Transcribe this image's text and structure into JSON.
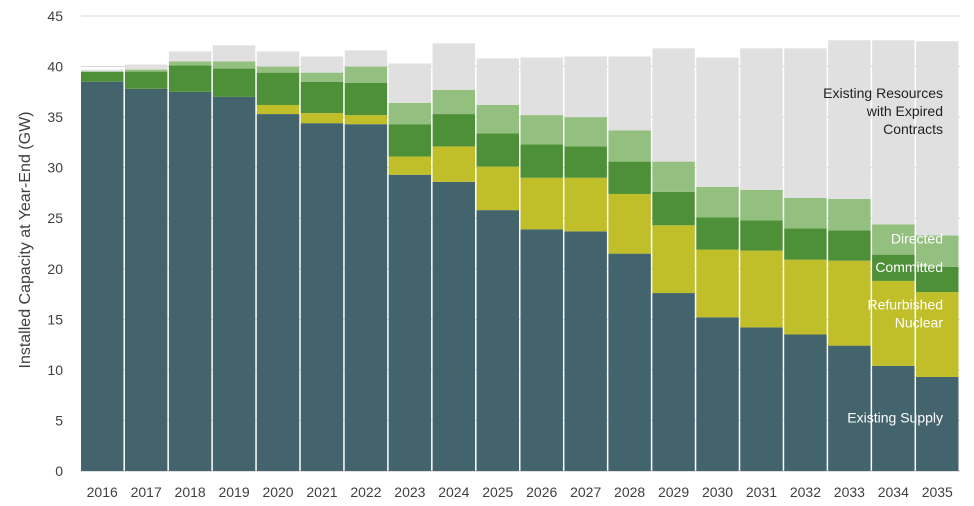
{
  "chart_data": {
    "type": "bar",
    "stacked": true,
    "title": "",
    "xlabel": "",
    "ylabel": "Installed Capacity at Year-End (GW)",
    "ylim": [
      0,
      45
    ],
    "yticks": [
      0,
      5,
      10,
      15,
      20,
      25,
      30,
      35,
      40,
      45
    ],
    "grid": true,
    "legend": "none",
    "categories": [
      "2016",
      "2017",
      "2018",
      "2019",
      "2020",
      "2021",
      "2022",
      "2023",
      "2024",
      "2025",
      "2026",
      "2027",
      "2028",
      "2029",
      "2030",
      "2031",
      "2032",
      "2033",
      "2034",
      "2035"
    ],
    "series": [
      {
        "key": "existing",
        "color": "#43646c",
        "values": [
          38.5,
          37.8,
          37.5,
          37.0,
          35.3,
          34.4,
          34.3,
          29.3,
          28.6,
          25.8,
          23.9,
          23.7,
          21.5,
          17.6,
          15.2,
          14.2,
          13.5,
          12.4,
          10.4,
          9.3
        ]
      },
      {
        "key": "refurbished",
        "color": "#c0bf2a",
        "values": [
          0,
          0,
          0,
          0,
          0.9,
          1.0,
          0.9,
          1.8,
          3.5,
          4.3,
          5.1,
          5.3,
          5.9,
          6.7,
          6.7,
          7.6,
          7.4,
          8.4,
          8.4,
          8.4
        ]
      },
      {
        "key": "committed",
        "color": "#4e9038",
        "values": [
          1.0,
          1.7,
          2.6,
          2.8,
          3.2,
          3.1,
          3.2,
          3.2,
          3.2,
          3.3,
          3.3,
          3.1,
          3.2,
          3.3,
          3.2,
          3.0,
          3.1,
          3.0,
          2.6,
          2.5
        ]
      },
      {
        "key": "directed",
        "color": "#93c07e",
        "values": [
          0,
          0.2,
          0.4,
          0.7,
          0.6,
          0.9,
          1.6,
          2.1,
          2.4,
          2.8,
          2.9,
          2.9,
          3.1,
          3.0,
          3.0,
          3.0,
          3.0,
          3.1,
          3.0,
          3.1
        ]
      },
      {
        "key": "expired",
        "color": "#e0e0e0",
        "values": [
          0.2,
          0.5,
          1.0,
          1.6,
          1.5,
          1.6,
          1.6,
          3.9,
          4.6,
          4.6,
          5.7,
          6.0,
          7.3,
          11.2,
          12.8,
          14.0,
          14.8,
          15.7,
          18.2,
          19.2
        ]
      }
    ],
    "annotations": {
      "expired": [
        "Existing Resources",
        "with Expired",
        "Contracts"
      ],
      "directed": [
        "Directed"
      ],
      "committed": [
        "Committed"
      ],
      "refurbished": [
        "Refurbished",
        "Nuclear"
      ],
      "existing": [
        "Existing Supply"
      ]
    },
    "annotation_colors": {
      "expired": "#222222",
      "directed": "#ffffff",
      "committed": "#ffffff",
      "refurbished": "#ffffff",
      "existing": "#ffffff"
    },
    "gridline_color": "#d9d9d9",
    "axis_color": "#bfbfbf"
  }
}
